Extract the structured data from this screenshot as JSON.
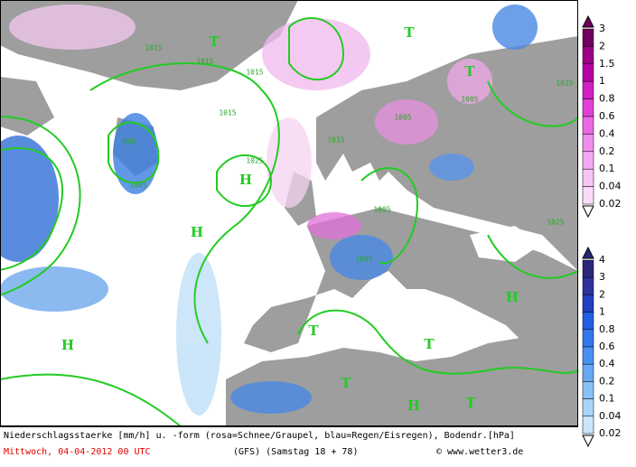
{
  "map": {
    "labels": [
      "H",
      "H",
      "H",
      "H",
      "H",
      "T",
      "T",
      "T",
      "T",
      "T",
      "T",
      "T",
      "1015",
      "1015",
      "1015",
      "1015",
      "1015",
      "1025",
      "1005",
      "1005",
      "1005",
      "1005",
      "1025",
      "1025",
      "1005",
      "995"
    ]
  },
  "legend_snow": {
    "labels": [
      "3",
      "2",
      "1.5",
      "1",
      "0.8",
      "0.6",
      "0.4",
      "0.2",
      "0.1",
      "0.04",
      "0.02"
    ]
  },
  "legend_rain": {
    "labels": [
      "4",
      "3",
      "2",
      "1",
      "0.8",
      "0.6",
      "0.4",
      "0.2",
      "0.1",
      "0.04",
      "0.02"
    ]
  },
  "footer": {
    "description": "Niederschlagsstaerke [mm/h] u. -form (rosa=Schnee/Graupel, blau=Regen/Eisregen), Bodendr.[hPa]",
    "date": "Mittwoch, 04-04-2012  00 UTC",
    "model": "(GFS)  (Samstag 18 + 78)",
    "credit": "© www.wetter3.de"
  }
}
